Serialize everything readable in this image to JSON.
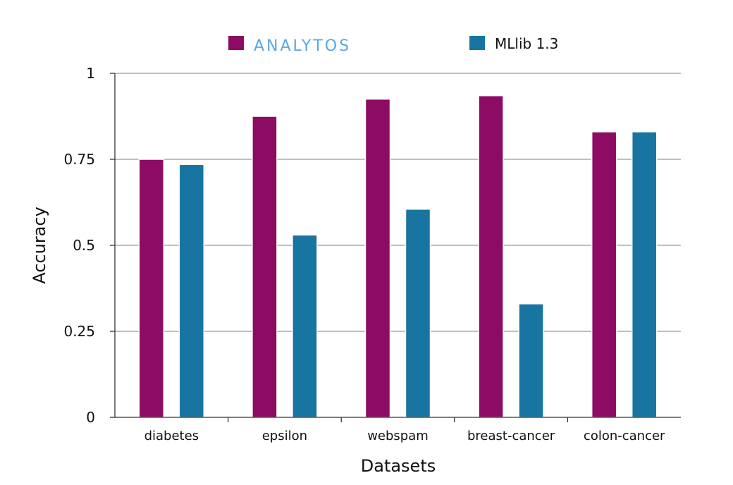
{
  "chart_data": {
    "type": "bar",
    "categories": [
      "diabetes",
      "epsilon",
      "webspam",
      "breast-cancer",
      "colon-cancer"
    ],
    "series": [
      {
        "name": "ANALYTOS",
        "color": "#8b0c62",
        "values": [
          0.75,
          0.875,
          0.925,
          0.935,
          0.83
        ]
      },
      {
        "name": "MLlib 1.3",
        "color": "#1874a0",
        "values": [
          0.735,
          0.53,
          0.605,
          0.33,
          0.83
        ]
      }
    ],
    "title": "",
    "xlabel": "Datasets",
    "ylabel": "Accuracy",
    "ylim": [
      0,
      1
    ],
    "yticks": [
      0,
      0.25,
      0.5,
      0.75,
      1
    ],
    "ytick_labels": [
      "0",
      "0.25",
      "0.5",
      "0.75",
      "1"
    ],
    "grid": true,
    "legend_position": "top-center"
  }
}
